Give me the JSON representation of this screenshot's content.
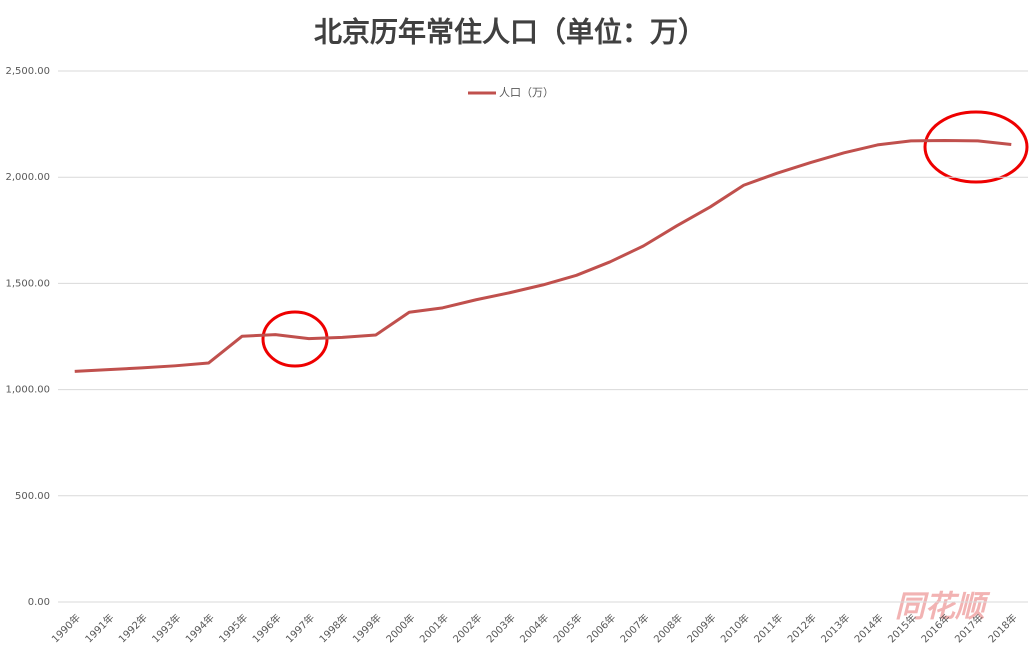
{
  "chart_data": {
    "type": "line",
    "title": "北京历年常住人口（单位：万）",
    "categories": [
      "1990年",
      "1991年",
      "1992年",
      "1993年",
      "1994年",
      "1995年",
      "1996年",
      "1997年",
      "1998年",
      "1999年",
      "2000年",
      "2001年",
      "2002年",
      "2003年",
      "2004年",
      "2005年",
      "2006年",
      "2007年",
      "2008年",
      "2009年",
      "2010年",
      "2011年",
      "2012年",
      "2013年",
      "2014年",
      "2015年",
      "2016年",
      "2017年",
      "2018年"
    ],
    "series": [
      {
        "name": "人口（万）",
        "color": "#c0504d",
        "values": [
          1086,
          1094,
          1102,
          1112,
          1125,
          1251,
          1259,
          1240,
          1246,
          1257,
          1364,
          1385,
          1423,
          1456,
          1493,
          1538,
          1601,
          1676,
          1771,
          1860,
          1962,
          2019,
          2069,
          2115,
          2152,
          2171,
          2173,
          2171,
          2154
        ]
      }
    ],
    "ylim": [
      0,
      2500
    ],
    "yticks": [
      {
        "value": 0,
        "label": "0.00"
      },
      {
        "value": 500,
        "label": "500.00"
      },
      {
        "value": 1000,
        "label": "1,000.00"
      },
      {
        "value": 1500,
        "label": "1,500.00"
      },
      {
        "value": 2000,
        "label": "2,000.00"
      },
      {
        "value": 2500,
        "label": "2,500.00"
      }
    ],
    "grid": true,
    "legend": "top",
    "watermark": "同花顺"
  }
}
